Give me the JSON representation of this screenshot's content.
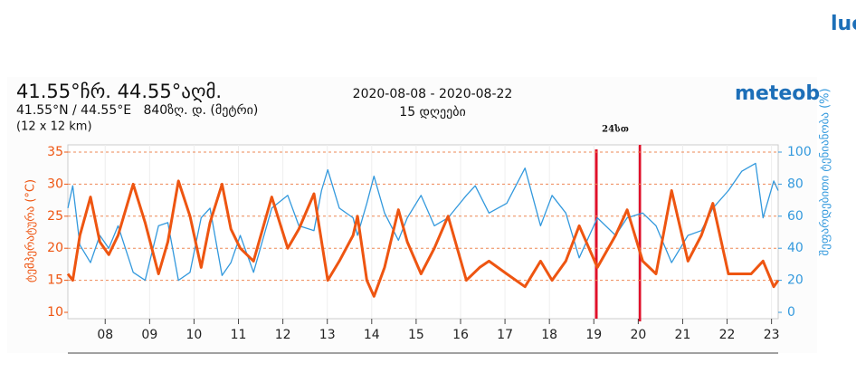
{
  "logo_fragment": "lue",
  "brand": "meteob",
  "header": {
    "title": "41.55°ჩრ. 44.55°აღმ.",
    "coords": "41.55°N / 44.55°E   840ზღ. დ. (მეტრი)",
    "grid_size": "(12 x 12 km)",
    "date_range": "2020-08-08 - 2020-08-22",
    "days": "15 დღეები"
  },
  "chart_data": {
    "type": "line",
    "annotation": "24სთ",
    "ylabel": "ტემპერატურა (°C)",
    "y2label": "შეფარდებითი ტენიანობა (%)",
    "xlim": [
      7.16,
      23.15
    ],
    "xticks": [
      {
        "value": 8,
        "label": "08"
      },
      {
        "value": 9,
        "label": "09"
      },
      10,
      11,
      12,
      13,
      14,
      15,
      16,
      17,
      18,
      19,
      20,
      21,
      22,
      23
    ],
    "ylim": [
      10,
      35
    ],
    "yticks": [
      10,
      15,
      20,
      25,
      30,
      35
    ],
    "y2lim": [
      0,
      100
    ],
    "y2ticks": [
      0,
      20,
      40,
      60,
      80,
      100
    ],
    "grid": true,
    "series": [
      {
        "name": "ტემპერატურა",
        "color": "#ee5511",
        "x": [
          7.16,
          7.27,
          7.43,
          7.67,
          7.88,
          8.08,
          8.29,
          8.63,
          8.9,
          9.2,
          9.41,
          9.65,
          9.91,
          10.16,
          10.36,
          10.63,
          10.83,
          11.04,
          11.34,
          11.75,
          12.11,
          12.36,
          12.7,
          13.01,
          13.27,
          13.58,
          13.68,
          13.89,
          14.05,
          14.29,
          14.6,
          14.8,
          15.11,
          15.41,
          15.72,
          16.13,
          16.43,
          16.64,
          17.04,
          17.45,
          17.8,
          18.06,
          18.37,
          18.67,
          19.08,
          19.49,
          19.75,
          20.1,
          20.4,
          20.75,
          21.12,
          21.42,
          21.68,
          22.03,
          22.54,
          22.81,
          23.05,
          23.15
        ],
        "values": [
          16,
          15,
          22,
          28,
          21,
          19,
          22,
          30,
          24,
          16,
          21,
          30.5,
          25,
          17,
          24,
          30,
          23,
          20,
          18,
          28,
          20,
          23,
          28.5,
          15,
          18,
          22,
          25,
          15,
          12.5,
          17,
          26,
          21,
          16,
          20,
          25,
          15,
          17,
          18,
          16,
          14,
          18,
          15,
          18,
          23.5,
          17,
          22,
          26,
          18,
          16,
          29,
          18,
          22,
          27,
          16,
          16,
          18,
          14,
          15
        ]
      },
      {
        "name": "შეფარდებითი ტენიანობა",
        "color": "#3399dd",
        "axis": "y2",
        "x": [
          7.16,
          7.27,
          7.43,
          7.67,
          7.88,
          8.08,
          8.29,
          8.63,
          8.9,
          9.2,
          9.41,
          9.65,
          9.91,
          10.16,
          10.36,
          10.63,
          10.83,
          11.04,
          11.34,
          11.75,
          12.11,
          12.36,
          12.7,
          12.87,
          13.01,
          13.27,
          13.58,
          13.68,
          13.89,
          14.05,
          14.29,
          14.6,
          14.8,
          15.11,
          15.41,
          15.72,
          16.13,
          16.33,
          16.64,
          17.04,
          17.45,
          17.8,
          18.06,
          18.37,
          18.67,
          19.08,
          19.49,
          19.75,
          20.1,
          20.4,
          20.75,
          21.12,
          21.42,
          21.68,
          22.03,
          22.33,
          22.64,
          22.81,
          23.05,
          23.15
        ],
        "values": [
          65,
          79,
          42,
          31,
          48,
          40,
          54,
          25,
          20,
          54,
          56,
          20,
          25,
          59,
          65,
          23,
          31,
          48,
          25,
          65,
          73,
          54,
          51,
          76,
          89,
          65,
          59,
          48,
          68,
          85,
          62,
          45,
          59,
          73,
          54,
          59,
          73,
          79,
          62,
          68,
          90,
          54,
          73,
          62,
          34,
          59,
          48,
          59,
          62,
          54,
          31,
          48,
          51,
          65,
          76,
          88,
          93,
          59,
          82,
          76
        ]
      }
    ]
  }
}
